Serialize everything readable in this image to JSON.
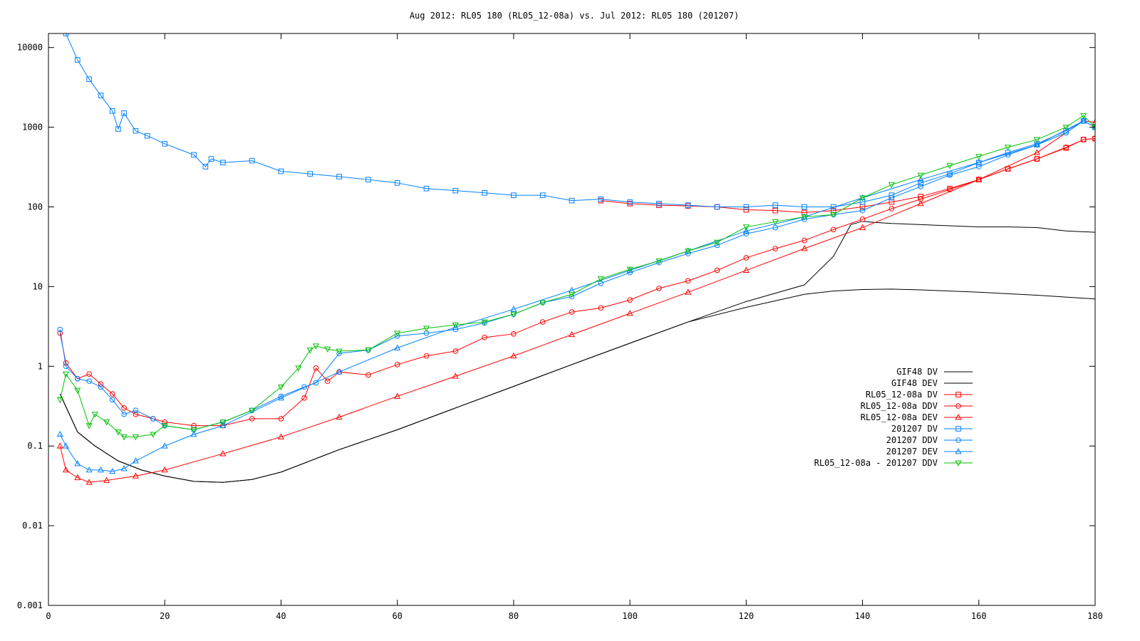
{
  "chart_data": {
    "type": "line",
    "title": "Aug 2012: RL05 180 (RL05_12-08a) vs. Jul 2012: RL05 180 (201207)",
    "xlabel": "",
    "ylabel": "",
    "xlim": [
      0,
      180
    ],
    "ylim": [
      0.001,
      15000
    ],
    "yscale": "log",
    "grid": false,
    "legend_position": "right-middle",
    "x_ticks": [
      {
        "value": 0,
        "label": "0"
      },
      {
        "value": 20,
        "label": "20"
      },
      {
        "value": 40,
        "label": "40"
      },
      {
        "value": 60,
        "label": "60"
      },
      {
        "value": 80,
        "label": "80"
      },
      {
        "value": 100,
        "label": "100"
      },
      {
        "value": 120,
        "label": "120"
      },
      {
        "value": 140,
        "label": "140"
      },
      {
        "value": 160,
        "label": "160"
      },
      {
        "value": 180,
        "label": "180"
      }
    ],
    "y_ticks": [
      {
        "value": 0.001,
        "label": "0.001"
      },
      {
        "value": 0.01,
        "label": "0.01"
      },
      {
        "value": 0.1,
        "label": "0.1"
      },
      {
        "value": 1,
        "label": "1"
      },
      {
        "value": 10,
        "label": "10"
      },
      {
        "value": 100,
        "label": "100"
      },
      {
        "value": 1000,
        "label": "1000"
      },
      {
        "value": 10000,
        "label": "10000"
      }
    ],
    "series": [
      {
        "name": "GIF48 DV",
        "color": "#000000",
        "marker": "none",
        "x": [
          2,
          5,
          8,
          12,
          16,
          20,
          25,
          30,
          35,
          40,
          50,
          60,
          70,
          80,
          90,
          100,
          110,
          120,
          130,
          135,
          138,
          140,
          142,
          145,
          150,
          155,
          160,
          165,
          170,
          175,
          180
        ],
        "values": [
          0.45,
          0.15,
          0.1,
          0.065,
          0.05,
          0.042,
          0.036,
          0.035,
          0.038,
          0.047,
          0.09,
          0.16,
          0.3,
          0.56,
          1.05,
          1.95,
          3.6,
          6.5,
          10.5,
          24,
          60,
          66,
          64,
          62,
          60,
          58,
          56,
          56,
          55,
          50,
          48
        ]
      },
      {
        "name": "GIF48 DEV",
        "color": "#000000",
        "marker": "none",
        "x": [
          2,
          5,
          8,
          12,
          16,
          20,
          25,
          30,
          35,
          40,
          50,
          60,
          70,
          80,
          90,
          100,
          110,
          120,
          130,
          135,
          140,
          145,
          150,
          160,
          170,
          180
        ],
        "values": [
          0.45,
          0.15,
          0.1,
          0.065,
          0.05,
          0.042,
          0.036,
          0.035,
          0.038,
          0.047,
          0.09,
          0.16,
          0.3,
          0.56,
          1.05,
          1.95,
          3.6,
          5.5,
          8.0,
          8.8,
          9.2,
          9.3,
          9.1,
          8.5,
          7.8,
          7.0
        ]
      },
      {
        "name": "RL05_12-08a DV",
        "color": "#ff0000",
        "marker": "square",
        "x": [
          95,
          100,
          105,
          110,
          115,
          120,
          125,
          130,
          135,
          140,
          145,
          150,
          155,
          160,
          165,
          170,
          175,
          178,
          180
        ],
        "values": [
          120,
          110,
          105,
          103,
          100,
          92,
          90,
          85,
          90,
          100,
          115,
          135,
          170,
          220,
          300,
          400,
          550,
          700,
          720
        ]
      },
      {
        "name": "RL05_12-08a DDV",
        "color": "#ff0000",
        "marker": "circle",
        "x": [
          2,
          3,
          5,
          7,
          9,
          11,
          13,
          15,
          18,
          20,
          25,
          30,
          35,
          40,
          44,
          46,
          48,
          50,
          55,
          60,
          65,
          70,
          75,
          80,
          85,
          90,
          95,
          100,
          105,
          110,
          115,
          120,
          125,
          130,
          135,
          140,
          145,
          150,
          155,
          160,
          165,
          170,
          175,
          178,
          180
        ],
        "values": [
          2.6,
          1.1,
          0.7,
          0.8,
          0.6,
          0.45,
          0.3,
          0.25,
          0.22,
          0.2,
          0.18,
          0.18,
          0.22,
          0.22,
          0.4,
          0.95,
          0.65,
          0.85,
          0.78,
          1.05,
          1.35,
          1.55,
          2.3,
          2.55,
          3.6,
          4.8,
          5.4,
          6.8,
          9.5,
          11.8,
          16,
          23,
          30,
          38,
          52,
          70,
          95,
          125,
          165,
          220,
          300,
          400,
          560,
          700,
          720
        ]
      },
      {
        "name": "RL05_12-08a DEV",
        "color": "#ff0000",
        "marker": "triangle",
        "x": [
          2,
          3,
          5,
          7,
          10,
          15,
          20,
          30,
          40,
          50,
          60,
          70,
          80,
          90,
          100,
          110,
          120,
          130,
          140,
          150,
          160,
          170,
          178,
          180
        ],
        "values": [
          0.1,
          0.05,
          0.04,
          0.035,
          0.037,
          0.042,
          0.05,
          0.08,
          0.13,
          0.23,
          0.42,
          0.75,
          1.35,
          2.5,
          4.6,
          8.5,
          16,
          30,
          55,
          110,
          220,
          480,
          1200,
          1150
        ]
      },
      {
        "name": "201207 DV",
        "color": "#0080ff",
        "marker": "square",
        "x": [
          3,
          5,
          7,
          9,
          11,
          12,
          13,
          15,
          17,
          20,
          25,
          27,
          28,
          30,
          35,
          40,
          45,
          50,
          55,
          60,
          65,
          70,
          75,
          80,
          85,
          90,
          95,
          100,
          105,
          110,
          115,
          120,
          125,
          130,
          135,
          140,
          145,
          150,
          155,
          160,
          165,
          170,
          175,
          178,
          180
        ],
        "values": [
          15000,
          7000,
          4000,
          2500,
          1600,
          950,
          1500,
          900,
          780,
          620,
          450,
          320,
          400,
          360,
          380,
          280,
          260,
          240,
          220,
          200,
          170,
          160,
          150,
          140,
          140,
          120,
          125,
          115,
          110,
          105,
          100,
          100,
          105,
          100,
          100,
          115,
          140,
          200,
          260,
          360,
          480,
          620,
          900,
          1200,
          1000
        ]
      },
      {
        "name": "201207 DDV",
        "color": "#0080ff",
        "marker": "circle",
        "x": [
          2,
          3,
          5,
          7,
          9,
          11,
          13,
          15,
          18,
          20,
          25,
          30,
          35,
          40,
          44,
          46,
          50,
          55,
          60,
          65,
          70,
          75,
          80,
          85,
          90,
          95,
          100,
          105,
          110,
          115,
          120,
          125,
          130,
          135,
          140,
          145,
          150,
          155,
          160,
          165,
          170,
          175,
          178,
          180
        ],
        "values": [
          2.9,
          1.0,
          0.7,
          0.65,
          0.55,
          0.38,
          0.25,
          0.28,
          0.22,
          0.18,
          0.16,
          0.2,
          0.28,
          0.42,
          0.55,
          0.62,
          1.45,
          1.6,
          2.4,
          2.6,
          2.9,
          3.5,
          4.5,
          6.3,
          7.5,
          11,
          15,
          20,
          26,
          33,
          46,
          55,
          70,
          80,
          90,
          130,
          180,
          250,
          320,
          450,
          600,
          850,
          1200,
          1000
        ]
      },
      {
        "name": "201207 DEV",
        "color": "#0080ff",
        "marker": "triangle",
        "x": [
          2,
          3,
          5,
          7,
          9,
          11,
          13,
          15,
          20,
          25,
          30,
          40,
          50,
          60,
          70,
          80,
          90,
          100,
          110,
          120,
          130,
          140,
          150,
          160,
          170,
          178,
          180
        ],
        "values": [
          0.14,
          0.1,
          0.06,
          0.05,
          0.05,
          0.048,
          0.052,
          0.065,
          0.1,
          0.14,
          0.18,
          0.4,
          0.85,
          1.7,
          3.1,
          5.2,
          9.0,
          16,
          28,
          50,
          75,
          130,
          220,
          360,
          600,
          1200,
          1000
        ]
      },
      {
        "name": "RL05_12-08a - 201207 DDV",
        "color": "#00c000",
        "marker": "triangle-down",
        "x": [
          2,
          3,
          5,
          7,
          8,
          10,
          12,
          13,
          15,
          18,
          20,
          25,
          30,
          35,
          40,
          43,
          45,
          46,
          48,
          50,
          55,
          60,
          65,
          70,
          75,
          80,
          85,
          90,
          95,
          100,
          105,
          110,
          115,
          120,
          125,
          130,
          135,
          140,
          145,
          150,
          155,
          160,
          165,
          170,
          175,
          178,
          180
        ],
        "values": [
          0.38,
          0.8,
          0.5,
          0.18,
          0.25,
          0.2,
          0.15,
          0.13,
          0.13,
          0.14,
          0.18,
          0.16,
          0.2,
          0.28,
          0.55,
          0.95,
          1.6,
          1.8,
          1.65,
          1.55,
          1.6,
          2.6,
          3.0,
          3.3,
          3.6,
          4.5,
          6.3,
          8.0,
          12.5,
          16.5,
          21,
          28,
          36,
          56,
          65,
          75,
          80,
          130,
          190,
          250,
          330,
          430,
          560,
          700,
          1000,
          1400,
          1000
        ]
      }
    ]
  }
}
